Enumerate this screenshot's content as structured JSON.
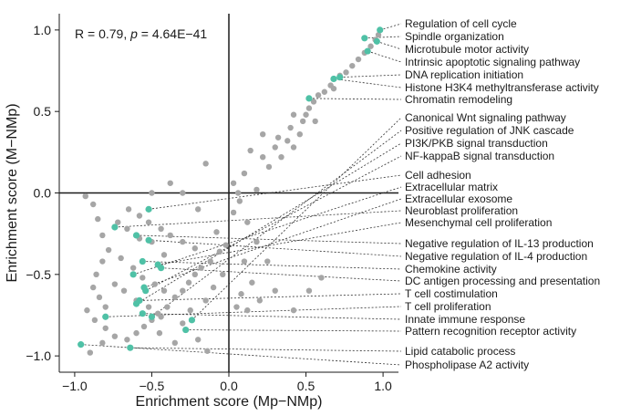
{
  "chart_data": {
    "type": "scatter",
    "xlabel": "Enrichment score (Mp−NMp)",
    "ylabel": "Enrichment score (M−NMp)",
    "xlim": [
      -1.1,
      1.1
    ],
    "ylim": [
      -1.1,
      1.1
    ],
    "x_ticks": [
      -1.0,
      -0.5,
      0.0,
      0.5,
      1.0
    ],
    "y_ticks": [
      -1.0,
      -0.5,
      0.0,
      0.5,
      1.0
    ],
    "x_tick_labels": [
      "−1.0",
      "−0.5",
      "0.0",
      "0.5",
      "1.0"
    ],
    "y_tick_labels": [
      "−1.0",
      "−0.5",
      "0.0",
      "0.5",
      "1.0"
    ],
    "reference_lines": {
      "x": 0,
      "y": 0
    },
    "stat_annotation": {
      "r_text": "R = 0.79, ",
      "p_symbol": "p",
      "p_value": " = 4.64E−41"
    },
    "colors": {
      "background_point": "#a6a6a6",
      "highlight_point": "#4fc1a6",
      "axis": "#1a1a1a",
      "leader": "#333333"
    },
    "background_points": [
      [
        -0.93,
        -0.02
      ],
      [
        -0.88,
        -0.07
      ],
      [
        -0.85,
        -0.16
      ],
      [
        -0.82,
        -0.26
      ],
      [
        -0.78,
        -0.35
      ],
      [
        -0.82,
        -0.42
      ],
      [
        -0.86,
        -0.5
      ],
      [
        -0.88,
        -0.58
      ],
      [
        -0.84,
        -0.64
      ],
      [
        -0.8,
        -0.7
      ],
      [
        -0.92,
        -0.72
      ],
      [
        -0.87,
        -0.78
      ],
      [
        -0.8,
        -0.83
      ],
      [
        -0.74,
        -0.88
      ],
      [
        -0.66,
        -0.9
      ],
      [
        -0.6,
        -0.86
      ],
      [
        -0.55,
        -0.82
      ],
      [
        -0.5,
        -0.78
      ],
      [
        -0.46,
        -0.74
      ],
      [
        -0.4,
        -0.7
      ],
      [
        -0.35,
        -0.64
      ],
      [
        -0.3,
        -0.6
      ],
      [
        -0.26,
        -0.55
      ],
      [
        -0.22,
        -0.5
      ],
      [
        -0.18,
        -0.46
      ],
      [
        -0.12,
        -0.42
      ],
      [
        -0.06,
        -0.36
      ],
      [
        -0.02,
        -0.32
      ],
      [
        -0.65,
        -0.1
      ],
      [
        -0.58,
        -0.14
      ],
      [
        -0.52,
        -0.18
      ],
      [
        -0.44,
        -0.22
      ],
      [
        -0.38,
        -0.26
      ],
      [
        -0.3,
        -0.3
      ],
      [
        -0.22,
        -0.34
      ],
      [
        -0.7,
        -0.4
      ],
      [
        -0.62,
        -0.46
      ],
      [
        -0.56,
        -0.52
      ],
      [
        -0.48,
        -0.56
      ],
      [
        -0.42,
        -0.6
      ],
      [
        -0.74,
        -0.56
      ],
      [
        -0.68,
        -0.6
      ],
      [
        -0.6,
        -0.66
      ],
      [
        -0.52,
        -0.7
      ],
      [
        -0.44,
        -0.76
      ],
      [
        -0.58,
        -0.28
      ],
      [
        -0.66,
        -0.22
      ],
      [
        -0.72,
        -0.18
      ],
      [
        -0.5,
        -0.3
      ],
      [
        -0.42,
        -0.38
      ],
      [
        -0.15,
        0.18
      ],
      [
        -0.38,
        0.06
      ],
      [
        -0.5,
        0.0
      ],
      [
        -0.3,
        0.0
      ],
      [
        -0.2,
        -0.1
      ],
      [
        -0.08,
        -0.24
      ],
      [
        0.03,
        -0.12
      ],
      [
        0.07,
        -0.05
      ],
      [
        0.12,
        -0.18
      ],
      [
        0.18,
        -0.3
      ],
      [
        0.1,
        -0.42
      ],
      [
        -0.04,
        -0.5
      ],
      [
        -0.1,
        -0.58
      ],
      [
        -0.15,
        -0.66
      ],
      [
        -0.25,
        -0.72
      ],
      [
        -0.3,
        -0.8
      ],
      [
        -0.45,
        -0.86
      ],
      [
        -0.2,
        -0.9
      ],
      [
        -0.14,
        -0.97
      ],
      [
        -0.35,
        -0.92
      ],
      [
        0.08,
        -0.62
      ],
      [
        0.12,
        -0.72
      ],
      [
        0.2,
        -0.66
      ],
      [
        0.3,
        -0.6
      ],
      [
        0.42,
        -0.72
      ],
      [
        0.52,
        -0.6
      ],
      [
        0.6,
        -0.52
      ],
      [
        0.25,
        -0.42
      ],
      [
        0.15,
        -0.55
      ],
      [
        0.05,
        -0.7
      ],
      [
        0.03,
        0.06
      ],
      [
        0.1,
        0.12
      ],
      [
        0.18,
        0.02
      ],
      [
        0.22,
        0.22
      ],
      [
        0.26,
        0.16
      ],
      [
        0.3,
        0.28
      ],
      [
        0.34,
        0.22
      ],
      [
        0.38,
        0.32
      ],
      [
        0.42,
        0.28
      ],
      [
        0.46,
        0.36
      ],
      [
        0.48,
        0.44
      ],
      [
        0.5,
        0.48
      ],
      [
        0.52,
        0.52
      ],
      [
        0.55,
        0.56
      ],
      [
        0.58,
        0.6
      ],
      [
        0.62,
        0.62
      ],
      [
        0.66,
        0.66
      ],
      [
        0.72,
        0.72
      ],
      [
        0.76,
        0.74
      ],
      [
        0.8,
        0.78
      ],
      [
        0.84,
        0.82
      ],
      [
        0.88,
        0.86
      ],
      [
        0.92,
        0.9
      ],
      [
        0.95,
        0.94
      ],
      [
        0.97,
        0.97
      ],
      [
        0.42,
        0.48
      ],
      [
        0.56,
        0.44
      ],
      [
        0.68,
        0.64
      ],
      [
        0.4,
        0.4
      ],
      [
        0.32,
        0.34
      ],
      [
        0.22,
        0.36
      ],
      [
        0.14,
        0.26
      ],
      [
        0.06,
        0.0
      ],
      [
        -0.9,
        -0.98
      ],
      [
        -0.82,
        -0.92
      ]
    ],
    "highlighted": [
      {
        "label": "Regulation of cell cycle",
        "x": 0.98,
        "y": 1.0
      },
      {
        "label": "Spindle organization",
        "x": 0.88,
        "y": 0.95
      },
      {
        "label": "Microtubule motor activity",
        "x": 0.96,
        "y": 0.93
      },
      {
        "label": "Intrinsic apoptotic signaling pathway",
        "x": 0.9,
        "y": 0.87
      },
      {
        "label": "DNA replication initiation",
        "x": 0.72,
        "y": 0.71
      },
      {
        "label": "Histone H3K4 methyltransferase activity",
        "x": 0.68,
        "y": 0.7
      },
      {
        "label": "Chromatin remodeling",
        "x": 0.52,
        "y": 0.58
      },
      {
        "label": "Canonical Wnt signaling pathway",
        "x": -0.24,
        "y": -0.78
      },
      {
        "label": "Positive regulation of JNK cascade",
        "x": -0.5,
        "y": -0.76
      },
      {
        "label": "PI3K/PKB signal transduction",
        "x": -0.6,
        "y": -0.68
      },
      {
        "label": "NF-kappaB signal transduction",
        "x": -0.54,
        "y": -0.6
      },
      {
        "label": "Cell adhesion",
        "x": -0.52,
        "y": -0.1
      },
      {
        "label": "Extracellular matrix",
        "x": -0.62,
        "y": -0.5
      },
      {
        "label": "Extracellular exosome",
        "x": -0.55,
        "y": -0.58
      },
      {
        "label": "Neuroblast proliferation",
        "x": -0.74,
        "y": -0.21
      },
      {
        "label": "Mesenchymal cell proliferation",
        "x": -0.46,
        "y": -0.44
      },
      {
        "label": "Negative regulation of IL-13 production",
        "x": -0.6,
        "y": -0.26
      },
      {
        "label": "Negative regulation of IL-4 production",
        "x": -0.52,
        "y": -0.29
      },
      {
        "label": "Chemokine activity",
        "x": -0.56,
        "y": -0.42
      },
      {
        "label": "DC antigen processing and presentation",
        "x": -0.44,
        "y": -0.46
      },
      {
        "label": "T cell costimulation",
        "x": -0.58,
        "y": -0.66
      },
      {
        "label": "T cell proliferation",
        "x": -0.8,
        "y": -0.76
      },
      {
        "label": "Innate immune response",
        "x": -0.56,
        "y": -0.74
      },
      {
        "label": "Pattern recognition receptor activity",
        "x": -0.28,
        "y": -0.84
      },
      {
        "label": "Lipid catabolic process",
        "x": -0.64,
        "y": -0.95
      },
      {
        "label": "Phospholipase A2 activity",
        "x": -0.96,
        "y": -0.93
      }
    ]
  }
}
